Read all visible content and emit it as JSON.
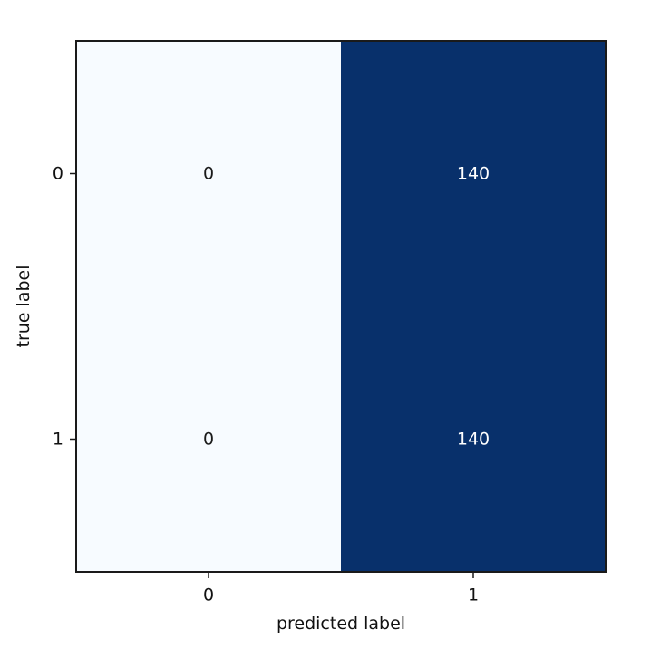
{
  "chart_data": {
    "type": "heatmap",
    "subtype": "confusion_matrix",
    "title": "",
    "xlabel": "predicted label",
    "ylabel": "true label",
    "x_categories": [
      "0",
      "1"
    ],
    "y_categories": [
      "0",
      "1"
    ],
    "values": [
      [
        0,
        140
      ],
      [
        0,
        140
      ]
    ],
    "value_range": [
      0,
      140
    ],
    "colormap": {
      "low": "#f7fbff",
      "high": "#08306b"
    },
    "cell_text_colors": {
      "on_light": "#1a1a1a",
      "on_dark": "#ffffff"
    },
    "colorbar": false,
    "grid": false
  }
}
